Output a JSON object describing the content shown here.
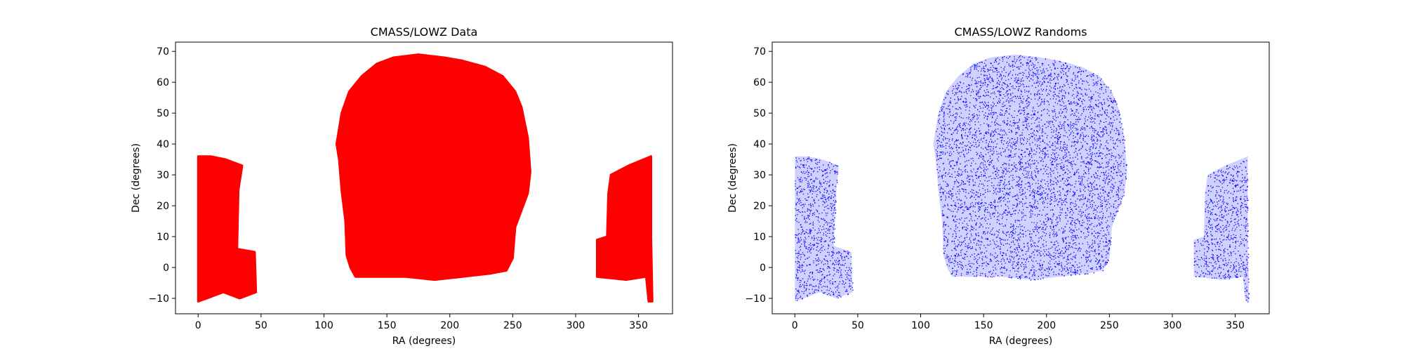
{
  "chart_data": [
    {
      "type": "scatter",
      "title": "CMASS/LOWZ Data",
      "xlabel": "RA (degrees)",
      "ylabel": "Dec (degrees)",
      "xlim": [
        -18,
        377
      ],
      "ylim": [
        -15,
        73
      ],
      "xticks": [
        0,
        50,
        100,
        150,
        200,
        250,
        300,
        350
      ],
      "yticks": [
        -10,
        0,
        10,
        20,
        30,
        40,
        50,
        60,
        70
      ],
      "grid": false,
      "color": "#ff0000",
      "marker": "dense-dots",
      "regions": [
        {
          "name": "south-left",
          "outline": [
            [
              0,
              36
            ],
            [
              10,
              36
            ],
            [
              22,
              35
            ],
            [
              35,
              33
            ],
            [
              32,
              25
            ],
            [
              31,
              6
            ],
            [
              45,
              5
            ],
            [
              46,
              -8
            ],
            [
              33,
              -10
            ],
            [
              20,
              -8
            ],
            [
              7,
              -10
            ],
            [
              0,
              -11
            ]
          ]
        },
        {
          "name": "north",
          "outline": [
            [
              110,
              40
            ],
            [
              114,
              50
            ],
            [
              120,
              57
            ],
            [
              130,
              62
            ],
            [
              142,
              66
            ],
            [
              155,
              68
            ],
            [
              175,
              69
            ],
            [
              196,
              68
            ],
            [
              210,
              67
            ],
            [
              228,
              65
            ],
            [
              242,
              62
            ],
            [
              252,
              57
            ],
            [
              257,
              52
            ],
            [
              262,
              42
            ],
            [
              264,
              31
            ],
            [
              262,
              24
            ],
            [
              252,
              13
            ],
            [
              250,
              3
            ],
            [
              245,
              -1
            ],
            [
              232,
              -2
            ],
            [
              210,
              -3
            ],
            [
              188,
              -4
            ],
            [
              165,
              -3
            ],
            [
              145,
              -3
            ],
            [
              125,
              -3
            ],
            [
              121,
              0
            ],
            [
              118,
              4
            ],
            [
              117,
              15
            ],
            [
              114,
              25
            ],
            [
              112,
              35
            ]
          ]
        },
        {
          "name": "south-right",
          "outline": [
            [
              317,
              9
            ],
            [
              325,
              10
            ],
            [
              326,
              24
            ],
            [
              328,
              30
            ],
            [
              342,
              33
            ],
            [
              360,
              36
            ],
            [
              360,
              10
            ],
            [
              361,
              -11
            ],
            [
              358,
              -11
            ],
            [
              356,
              -3
            ],
            [
              340,
              -4
            ],
            [
              317,
              -3
            ]
          ]
        }
      ]
    },
    {
      "type": "scatter",
      "title": "CMASS/LOWZ Randoms",
      "xlabel": "RA (degrees)",
      "ylabel": "Dec (degrees)",
      "xlim": [
        -18,
        377
      ],
      "ylim": [
        -15,
        73
      ],
      "xticks": [
        0,
        50,
        100,
        150,
        200,
        250,
        300,
        350
      ],
      "yticks": [
        -10,
        0,
        10,
        20,
        30,
        40,
        50,
        60,
        70
      ],
      "grid": false,
      "color": "#0000ff",
      "marker": "sparse-dots",
      "regions": [
        {
          "name": "south-left",
          "outline": [
            [
              0,
              36
            ],
            [
              10,
              36
            ],
            [
              22,
              35
            ],
            [
              35,
              33
            ],
            [
              33,
              25
            ],
            [
              31,
              7
            ],
            [
              45,
              5
            ],
            [
              46,
              -8
            ],
            [
              33,
              -10
            ],
            [
              20,
              -8
            ],
            [
              7,
              -10
            ],
            [
              0,
              -11
            ]
          ]
        },
        {
          "name": "north",
          "outline": [
            [
              110,
              40
            ],
            [
              114,
              50
            ],
            [
              120,
              57
            ],
            [
              130,
              62
            ],
            [
              142,
              66
            ],
            [
              155,
              68
            ],
            [
              175,
              69
            ],
            [
              196,
              68
            ],
            [
              210,
              67
            ],
            [
              228,
              65
            ],
            [
              242,
              62
            ],
            [
              252,
              57
            ],
            [
              257,
              52
            ],
            [
              262,
              42
            ],
            [
              264,
              31
            ],
            [
              262,
              24
            ],
            [
              252,
              13
            ],
            [
              250,
              3
            ],
            [
              245,
              -1
            ],
            [
              232,
              -2
            ],
            [
              210,
              -3
            ],
            [
              188,
              -4
            ],
            [
              165,
              -3
            ],
            [
              145,
              -3
            ],
            [
              125,
              -3
            ],
            [
              121,
              0
            ],
            [
              118,
              4
            ],
            [
              117,
              15
            ],
            [
              114,
              25
            ],
            [
              112,
              35
            ]
          ]
        },
        {
          "name": "south-right",
          "outline": [
            [
              317,
              9
            ],
            [
              325,
              10
            ],
            [
              326,
              24
            ],
            [
              328,
              30
            ],
            [
              342,
              33
            ],
            [
              360,
              36
            ],
            [
              360,
              10
            ],
            [
              361,
              -11
            ],
            [
              358,
              -11
            ],
            [
              356,
              -3
            ],
            [
              340,
              -4
            ],
            [
              317,
              -3
            ]
          ]
        }
      ]
    }
  ]
}
